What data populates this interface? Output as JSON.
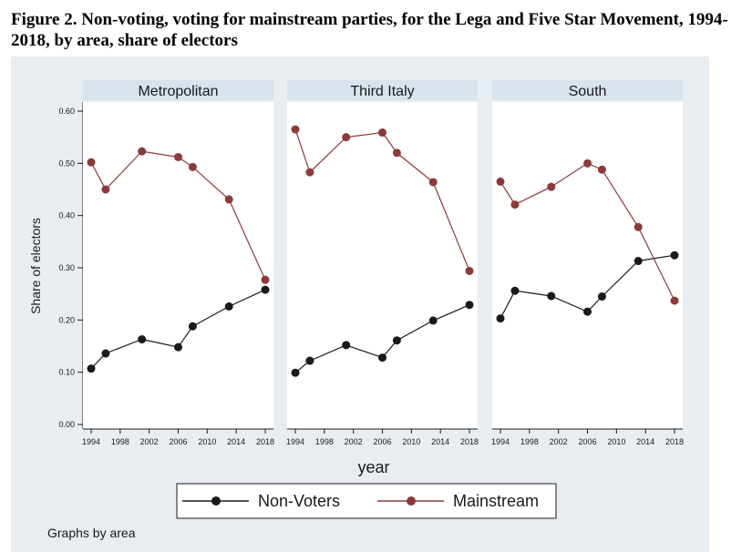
{
  "figure": {
    "title": "Figure 2. Non-voting, voting for mainstream parties, for the Lega and Five Star Movement, 1994-2018, by area, share of electors"
  },
  "chart_data": {
    "type": "line",
    "ylabel": "Share of electors",
    "xlabel": "year",
    "ylim": [
      0,
      0.6
    ],
    "yticks": [
      "0.00",
      "0.10",
      "0.20",
      "0.30",
      "0.40",
      "0.50",
      "0.60"
    ],
    "yticks_values": [
      0,
      0.1,
      0.2,
      0.3,
      0.4,
      0.5,
      0.6
    ],
    "xlim": [
      1994,
      2018
    ],
    "xticks": [
      "1994",
      "1998",
      "2002",
      "2006",
      "2010",
      "2014",
      "2018"
    ],
    "xticks_values": [
      1994,
      1998,
      2002,
      2006,
      2010,
      2014,
      2018
    ],
    "note": "Graphs by area",
    "legend": [
      {
        "name": "Non-Voters",
        "color": "#1a1a1a"
      },
      {
        "name": "Mainstream",
        "color": "#8b3a3a"
      }
    ],
    "panels": [
      {
        "name": "Metropolitan",
        "series": [
          {
            "name": "Non-Voters",
            "color": "#1a1a1a",
            "x": [
              1994,
              1996,
              2001,
              2006,
              2008,
              2013,
              2018
            ],
            "y": [
              0.107,
              0.136,
              0.163,
              0.148,
              0.188,
              0.226,
              0.258
            ]
          },
          {
            "name": "Mainstream",
            "color": "#8b3a3a",
            "x": [
              1994,
              1996,
              2001,
              2006,
              2008,
              2013,
              2018
            ],
            "y": [
              0.502,
              0.45,
              0.523,
              0.512,
              0.493,
              0.431,
              0.277
            ]
          }
        ]
      },
      {
        "name": "Third Italy",
        "series": [
          {
            "name": "Non-Voters",
            "color": "#1a1a1a",
            "x": [
              1994,
              1996,
              2001,
              2006,
              2008,
              2013,
              2018
            ],
            "y": [
              0.099,
              0.122,
              0.152,
              0.128,
              0.161,
              0.199,
              0.229
            ]
          },
          {
            "name": "Mainstream",
            "color": "#8b3a3a",
            "x": [
              1994,
              1996,
              2001,
              2006,
              2008,
              2013,
              2018
            ],
            "y": [
              0.565,
              0.483,
              0.55,
              0.559,
              0.52,
              0.464,
              0.294
            ]
          }
        ]
      },
      {
        "name": "South",
        "series": [
          {
            "name": "Non-Voters",
            "color": "#1a1a1a",
            "x": [
              1994,
              1996,
              2001,
              2006,
              2008,
              2013,
              2018
            ],
            "y": [
              0.203,
              0.256,
              0.246,
              0.216,
              0.245,
              0.313,
              0.324
            ]
          },
          {
            "name": "Mainstream",
            "color": "#8b3a3a",
            "x": [
              1994,
              1996,
              2001,
              2006,
              2008,
              2013,
              2018
            ],
            "y": [
              0.465,
              0.421,
              0.455,
              0.5,
              0.488,
              0.378,
              0.237
            ]
          }
        ]
      }
    ]
  }
}
